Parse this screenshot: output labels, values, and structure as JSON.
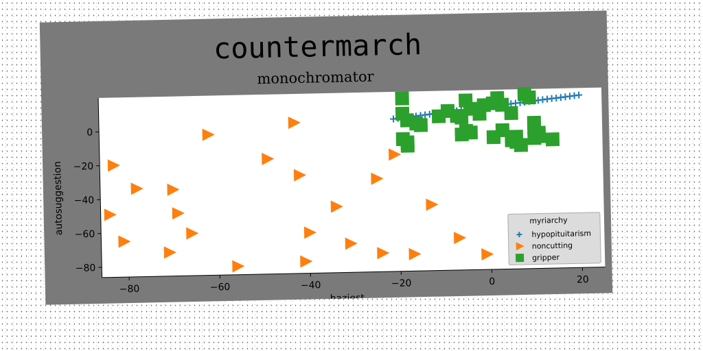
{
  "chart_data": {
    "type": "scatter",
    "title": "countermarch",
    "subtitle": "monochromator",
    "xlabel": "haziest",
    "ylabel": "autosuggestion",
    "xlim": [
      -86,
      25
    ],
    "ylim": [
      -86,
      20
    ],
    "xticks": [
      -80,
      -60,
      -40,
      -20,
      0,
      20
    ],
    "yticks": [
      0,
      -20,
      -40,
      -60,
      -80
    ],
    "xtick_labels": [
      "−80",
      "−60",
      "−40",
      "−20",
      "0",
      "20"
    ],
    "ytick_labels": [
      "0",
      "−20",
      "−40",
      "−60",
      "−80"
    ],
    "grid": false,
    "legend_title": "myriarchy",
    "legend_position": "bottom-right",
    "series": [
      {
        "name": "hypopituitarism",
        "marker": "plus",
        "color": "#1f77b4",
        "x": [
          -21,
          -20,
          -19,
          -18,
          -17,
          -16,
          -15,
          -14,
          -13,
          -12,
          -11,
          -10,
          -9,
          -8,
          -7,
          -6,
          -5,
          -4,
          -3,
          -2,
          -1,
          0,
          1,
          2,
          3,
          4,
          5,
          6,
          7,
          8,
          9,
          10,
          11,
          12,
          13,
          14,
          15,
          16,
          17,
          18,
          19,
          20
        ],
        "y": [
          4,
          4.3,
          4.6,
          4.9,
          5.1,
          5.4,
          5.7,
          6,
          6.3,
          6.6,
          6.9,
          7.2,
          7.4,
          7.7,
          8,
          8.3,
          8.6,
          8.9,
          9.2,
          9.5,
          9.7,
          10,
          10.3,
          10.6,
          10.9,
          11.2,
          11.5,
          11.8,
          12,
          12.3,
          12.6,
          12.9,
          13.2,
          13.5,
          13.8,
          14.1,
          14.3,
          14.6,
          14.9,
          15.2,
          15.5,
          15.8
        ]
      },
      {
        "name": "noncutting",
        "marker": "triangle-right",
        "color": "#ff7f0e",
        "x": [
          -62,
          -43,
          -83,
          -49,
          -78,
          -70,
          -42,
          -25,
          -21,
          -84,
          -69,
          -34,
          -13,
          -81,
          -66,
          -40,
          -71,
          -31,
          -7,
          -56,
          -41,
          -24,
          -17,
          -1
        ],
        "y": [
          -3,
          3,
          -20,
          -18,
          -34,
          -35,
          -28,
          -31,
          -17,
          -49,
          -49,
          -47,
          -47,
          -65,
          -61,
          -62,
          -72,
          -69,
          -67,
          -81,
          -79,
          -75,
          -76,
          -77
        ]
      },
      {
        "name": "gripper",
        "marker": "square",
        "color": "#2ca02c",
        "x": [
          -19,
          -19,
          -18,
          -16,
          -15,
          -11,
          -9,
          -7,
          -6,
          -5,
          -4,
          -2,
          -1,
          1,
          2,
          3,
          5,
          6,
          8,
          9,
          10,
          10,
          11,
          11,
          14,
          -19,
          -18,
          -18,
          -6,
          -5,
          -4,
          1,
          3,
          5,
          6,
          7,
          10
        ],
        "y": [
          16,
          7,
          3,
          1,
          0,
          5,
          8,
          5,
          4,
          14,
          9,
          6,
          11,
          12,
          15,
          11,
          6,
          -8,
          17,
          15,
          0,
          -3,
          -6,
          -8,
          -10,
          -8,
          -10,
          -12,
          -6,
          -4,
          -5,
          -8,
          -4,
          -10,
          -11,
          -13,
          -9
        ]
      }
    ]
  }
}
